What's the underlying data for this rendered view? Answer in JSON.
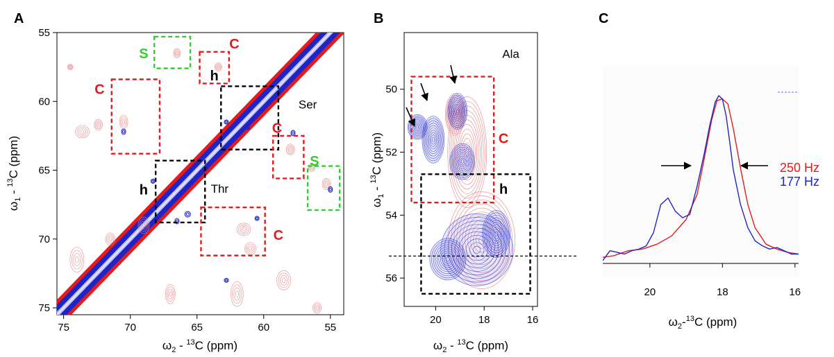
{
  "figure": {
    "panels": [
      "A",
      "B",
      "C"
    ]
  },
  "colors": {
    "red": "#e41a1c",
    "blue": "#1f24c4",
    "light_red": "#e88a8a",
    "light_blue": "#6b6ff0",
    "green": "#33cc33",
    "black": "#000000"
  },
  "chart_data": [
    {
      "panel": "A",
      "type": "heatmap",
      "subtype": "2D 13C-13C correlation spectrum (contour plot, overlay of two spectra)",
      "xlabel": "ω2 - 13C (ppm)",
      "xlabel_parts": {
        "pre": "ω",
        "sub": "2",
        "mid": " - ",
        "sup": "13",
        "post": "C (ppm)"
      },
      "ylabel": "ω1 - 13C (ppm)",
      "ylabel_parts": {
        "pre": "ω",
        "sub": "1",
        "mid": " - ",
        "sup": "13",
        "post": "C (ppm)"
      },
      "xlim": [
        75.5,
        54
      ],
      "ylim": [
        55,
        75.5
      ],
      "xticks": [
        75,
        70,
        65,
        60,
        55
      ],
      "yticks": [
        55,
        60,
        65,
        70,
        75
      ],
      "series_colors": [
        "#e41a1c",
        "#1f24c4"
      ],
      "region_labels": [
        {
          "text": "Ser",
          "x": 56.7,
          "y": 60.3
        },
        {
          "text": "Thr",
          "x": 63.3,
          "y": 66.4
        }
      ],
      "boxes": [
        {
          "label": "S",
          "color": "green",
          "x": [
            68.2,
            65.5
          ],
          "y": [
            55.3,
            57.6
          ],
          "label_x": 69.0,
          "label_y": 56.6
        },
        {
          "label": "C",
          "color": "red",
          "x": [
            64.8,
            62.6
          ],
          "y": [
            56.4,
            58.7
          ],
          "label_x": 62.2,
          "label_y": 55.9
        },
        {
          "label": "C",
          "color": "red",
          "x": [
            71.4,
            67.8
          ],
          "y": [
            58.4,
            63.8
          ],
          "label_x": 72.3,
          "label_y": 59.2
        },
        {
          "label": "h",
          "color": "black",
          "x": [
            63.2,
            58.9
          ],
          "y": [
            58.9,
            63.5
          ],
          "label_x": 63.7,
          "label_y": 58.2
        },
        {
          "label": "C",
          "color": "red",
          "x": [
            59.3,
            57.0
          ],
          "y": [
            62.5,
            65.6
          ],
          "label_x": 59.0,
          "label_y": 62.0
        },
        {
          "label": "S",
          "color": "green",
          "x": [
            56.7,
            54.3
          ],
          "y": [
            64.7,
            67.9
          ],
          "label_x": 56.2,
          "label_y": 64.4
        },
        {
          "label": "h",
          "color": "black",
          "x": [
            68.1,
            64.4
          ],
          "y": [
            64.3,
            68.8
          ],
          "label_x": 69.0,
          "label_y": 66.5
        },
        {
          "label": "C",
          "color": "red",
          "x": [
            64.7,
            59.9
          ],
          "y": [
            67.7,
            71.2
          ],
          "label_x": 58.9,
          "label_y": 69.8
        }
      ]
    },
    {
      "panel": "B",
      "type": "heatmap",
      "subtype": "2D 13C-13C correlation spectrum (Ala region, contour overlay)",
      "xlabel": "ω2 - 13C (ppm)",
      "xlabel_parts": {
        "pre": "ω",
        "sub": "2",
        "mid": " - ",
        "sup": "13",
        "post": "C (ppm)"
      },
      "ylabel": "ω1 - 13C (ppm)",
      "ylabel_parts": {
        "pre": "ω",
        "sub": "1",
        "mid": " - ",
        "sup": "13",
        "post": "C (ppm)"
      },
      "xlim": [
        21.3,
        15.8
      ],
      "ylim": [
        48.2,
        56.9
      ],
      "xticks": [
        20,
        18,
        16
      ],
      "yticks": [
        50,
        52,
        54,
        56
      ],
      "series_colors": [
        "#e41a1c",
        "#1f24c4"
      ],
      "region_labels": [
        {
          "text": "Ala",
          "x": 16.9,
          "y": 48.9
        }
      ],
      "boxes": [
        {
          "label": "C",
          "color": "red",
          "x": [
            21.0,
            17.6
          ],
          "y": [
            49.6,
            53.6
          ],
          "label_x": 17.2,
          "label_y": 51.6
        },
        {
          "label": "h",
          "color": "black",
          "x": [
            20.6,
            16.1
          ],
          "y": [
            52.7,
            56.5
          ],
          "label_x": 17.2,
          "label_y": 53.2
        }
      ],
      "dashed_line_y": 55.3
    },
    {
      "panel": "C",
      "type": "line",
      "subtype": "1D slice at dashed line of panel B",
      "xlabel": "ω2-13C (ppm)",
      "xlabel_parts": {
        "pre": "ω",
        "sub": "2",
        "mid": "-",
        "sup": "13",
        "post": "C (ppm)"
      },
      "xlim": [
        21.3,
        15.9
      ],
      "xticks": [
        20,
        18,
        16
      ],
      "series": [
        {
          "name": "250 Hz",
          "color": "#e41a1c",
          "x": [
            21.3,
            21.0,
            20.6,
            20.2,
            19.8,
            19.4,
            19.0,
            18.7,
            18.5,
            18.3,
            18.15,
            18.0,
            17.85,
            17.7,
            17.5,
            17.3,
            17.1,
            16.8,
            16.5,
            16.2,
            15.9
          ],
          "y": [
            0.02,
            0.03,
            0.06,
            0.07,
            0.1,
            0.15,
            0.25,
            0.4,
            0.62,
            0.85,
            0.97,
            0.98,
            0.95,
            0.8,
            0.56,
            0.34,
            0.2,
            0.1,
            0.07,
            0.05,
            0.04
          ]
        },
        {
          "name": "177 Hz",
          "color": "#1f24c4",
          "x": [
            21.3,
            21.1,
            20.9,
            20.7,
            20.5,
            20.3,
            20.1,
            19.9,
            19.7,
            19.5,
            19.3,
            19.1,
            18.9,
            18.7,
            18.5,
            18.35,
            18.2,
            18.1,
            18.0,
            17.9,
            17.8,
            17.7,
            17.5,
            17.3,
            17.1,
            16.9,
            16.7,
            16.5,
            16.3,
            16.1,
            15.9
          ],
          "y": [
            0.0,
            0.06,
            0.05,
            0.04,
            0.06,
            0.07,
            0.09,
            0.17,
            0.34,
            0.38,
            0.3,
            0.26,
            0.28,
            0.45,
            0.65,
            0.82,
            0.96,
            1.0,
            0.98,
            0.88,
            0.72,
            0.55,
            0.34,
            0.2,
            0.12,
            0.09,
            0.07,
            0.08,
            0.06,
            0.04,
            0.04
          ]
        }
      ],
      "legend": [
        {
          "text": "250 Hz",
          "color": "#e41a1c"
        },
        {
          "text": "177 Hz",
          "color": "#1f24c4"
        }
      ]
    }
  ]
}
